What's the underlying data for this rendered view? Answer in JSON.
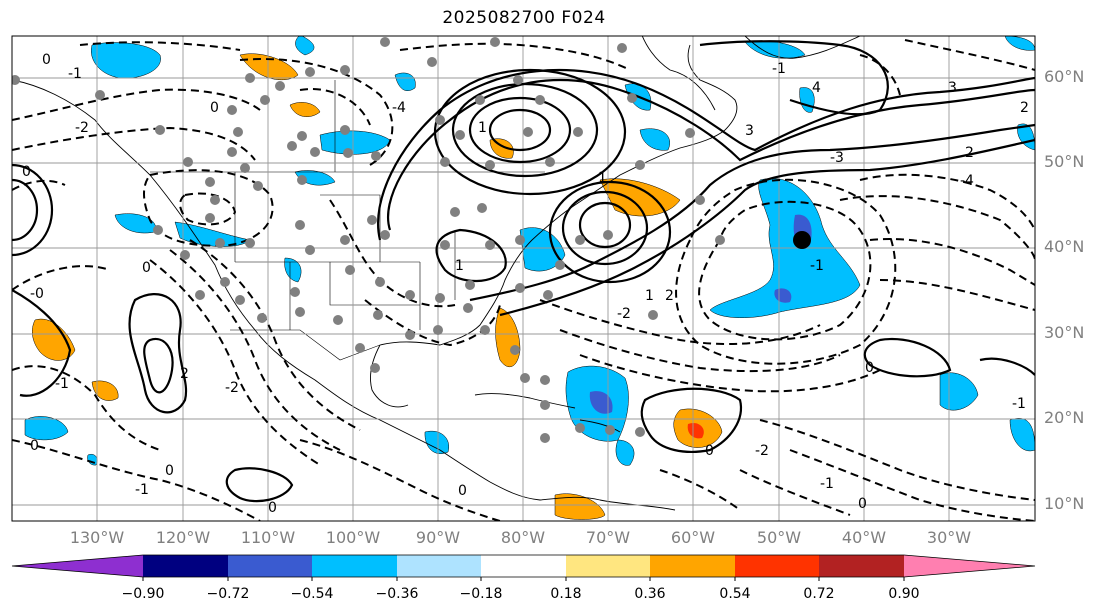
{
  "title": "2025082700 F024",
  "lat_labels": [
    {
      "text": "60°N",
      "lat": 60
    },
    {
      "text": "50°N",
      "lat": 50
    },
    {
      "text": "40°N",
      "lat": 40
    },
    {
      "text": "30°N",
      "lat": 30
    },
    {
      "text": "20°N",
      "lat": 20
    },
    {
      "text": "10°N",
      "lat": 10
    }
  ],
  "lon_labels": [
    {
      "text": "130°W",
      "lon": -130
    },
    {
      "text": "120°W",
      "lon": -120
    },
    {
      "text": "110°W",
      "lon": -110
    },
    {
      "text": "100°W",
      "lon": -100
    },
    {
      "text": "90°W",
      "lon": -90
    },
    {
      "text": "80°W",
      "lon": -80
    },
    {
      "text": "70°W",
      "lon": -70
    },
    {
      "text": "60°W",
      "lon": -60
    },
    {
      "text": "50°W",
      "lon": -50
    },
    {
      "text": "40°W",
      "lon": -40
    },
    {
      "text": "30°W",
      "lon": -30
    }
  ],
  "colorbar": {
    "ticks": [
      "−0.90",
      "−0.72",
      "−0.54",
      "−0.36",
      "−0.18",
      "0.18",
      "0.36",
      "0.54",
      "0.72",
      "0.90"
    ],
    "colors": [
      "#8e2fd0",
      "#000080",
      "#3a5bd0",
      "#00bfff",
      "#aee3ff",
      "#ffffff",
      "#ffe680",
      "#ffa500",
      "#ff3300",
      "#b22222",
      "#ff7fb0"
    ]
  },
  "contour_labels": [
    "0",
    "-1",
    "-2",
    "-3",
    "-4",
    "1",
    "2",
    "3",
    "4"
  ],
  "marker": {
    "lon": -47,
    "lat": 41
  }
}
